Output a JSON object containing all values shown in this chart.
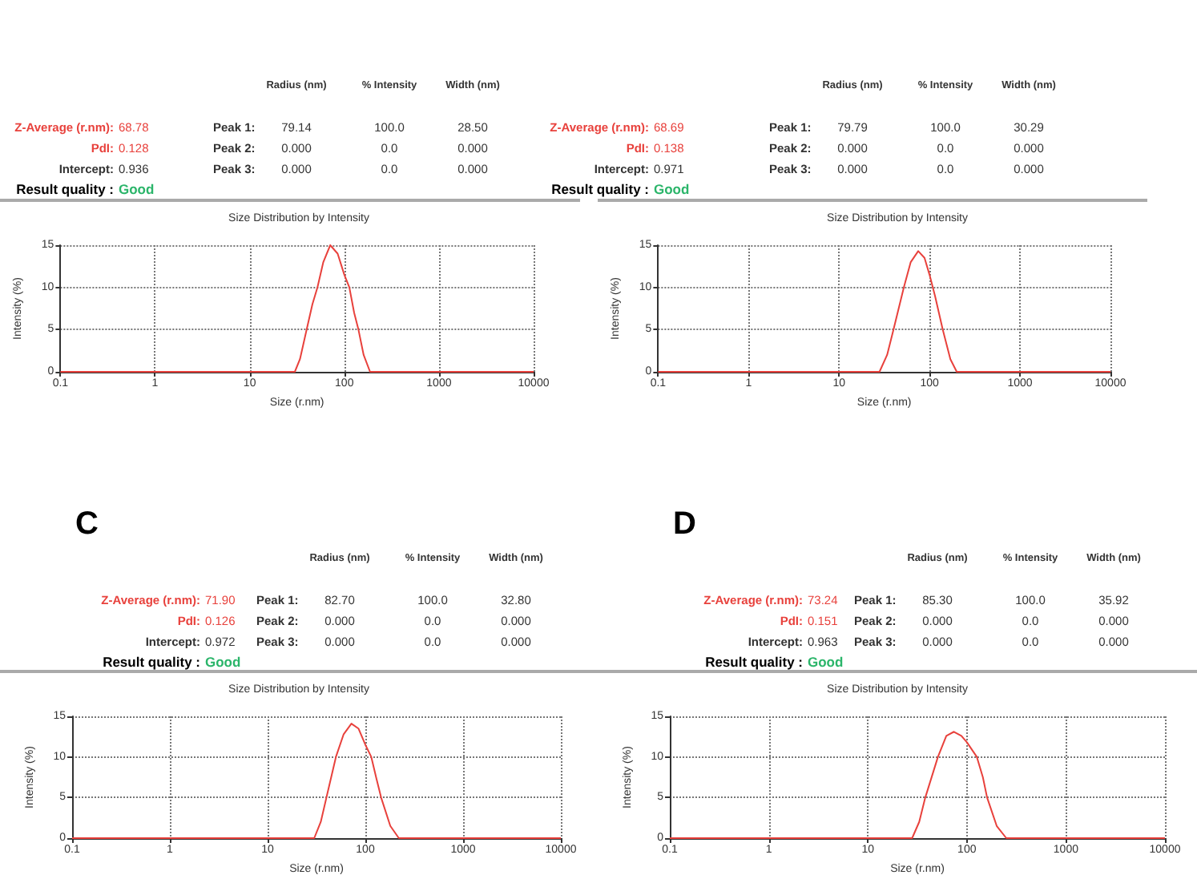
{
  "chart_data": [
    {
      "type": "other",
      "annotations": [
        "Radius (nm)",
        "% Intensity",
        "Width (nm)",
        "Z-Average (r.nm):",
        "68.78",
        "PdI:",
        "0.128",
        "Intercept:",
        "0.936",
        "Result quality :",
        "Good",
        "Peak 1:",
        "79.14",
        "100.0",
        "28.50",
        "Peak 2:",
        "0.000",
        "0.0",
        "0.000",
        "Peak 3:",
        "0.000",
        "0.0",
        "0.000"
      ]
    },
    {
      "type": "other",
      "annotations": [
        "Radius (nm)",
        "% Intensity",
        "Width (nm)",
        "Z-Average (r.nm):",
        "68.69",
        "PdI:",
        "0.138",
        "Intercept:",
        "0.971",
        "Result quality :",
        "Good",
        "Peak 1:",
        "79.79",
        "100.0",
        "30.29",
        "Peak 2:",
        "0.000",
        "0.0",
        "0.000",
        "Peak 3:",
        "0.000",
        "0.0",
        "0.000"
      ]
    },
    {
      "type": "line",
      "title": "Size Distribution by Intensity",
      "xlabel": "Size (r.nm)",
      "ylabel": "Intensity (%)",
      "log": "x",
      "xlim": [
        0.1,
        10000
      ],
      "xticks": [
        0.1,
        1,
        10,
        100,
        1000,
        10000
      ],
      "ylim": [
        0,
        15
      ],
      "yticks": [
        0,
        5,
        10,
        15
      ],
      "grid": true,
      "marker": "none",
      "line_style": "solid",
      "series": [
        {
          "color": "#e8413c",
          "x": [
            0.1,
            30,
            34,
            40,
            46,
            52,
            60,
            71,
            85,
            100,
            113,
            127,
            141,
            160,
            187,
            10000
          ],
          "values": [
            0,
            0,
            1.5,
            5,
            8,
            10,
            13,
            15,
            14,
            11.5,
            10,
            7,
            5,
            2,
            0,
            0
          ]
        }
      ]
    },
    {
      "type": "line",
      "title": "Size Distribution by Intensity",
      "xlabel": "Size (r.nm)",
      "ylabel": "Intensity (%)",
      "log": "x",
      "xlim": [
        0.1,
        10000
      ],
      "xticks": [
        0.1,
        1,
        10,
        100,
        1000,
        10000
      ],
      "ylim": [
        0,
        15
      ],
      "yticks": [
        0,
        5,
        10,
        15
      ],
      "grid": true,
      "marker": "none",
      "line_style": "solid",
      "series": [
        {
          "color": "#e8413c",
          "x": [
            0.1,
            28,
            34,
            40,
            52,
            62,
            75,
            88,
            100,
            115,
            140,
            170,
            200,
            10000
          ],
          "values": [
            0,
            0,
            2,
            5,
            10,
            13,
            14.3,
            13.5,
            11.5,
            9,
            5,
            1.5,
            0,
            0
          ]
        }
      ]
    },
    {
      "type": "other",
      "title": "C",
      "annotations": [
        "Radius (nm)",
        "% Intensity",
        "Width (nm)",
        "Z-Average (r.nm):",
        "71.90",
        "PdI:",
        "0.126",
        "Intercept:",
        "0.972",
        "Result quality :",
        "Good",
        "Peak 1:",
        "82.70",
        "100.0",
        "32.80",
        "Peak 2:",
        "0.000",
        "0.0",
        "0.000",
        "Peak 3:",
        "0.000",
        "0.0",
        "0.000"
      ]
    },
    {
      "type": "other",
      "title": "D",
      "annotations": [
        "Radius (nm)",
        "% Intensity",
        "Width (nm)",
        "Z-Average (r.nm):",
        "73.24",
        "PdI:",
        "0.151",
        "Intercept:",
        "0.963",
        "Result quality :",
        "Good",
        "Peak 1:",
        "85.30",
        "100.0",
        "35.92",
        "Peak 2:",
        "0.000",
        "0.0",
        "0.000",
        "Peak 3:",
        "0.000",
        "0.0",
        "0.000"
      ]
    },
    {
      "type": "line",
      "title": "Size Distribution by Intensity",
      "xlabel": "Size (r.nm)",
      "ylabel": "Intensity (%)",
      "log": "x",
      "xlim": [
        0.1,
        10000
      ],
      "xticks": [
        0.1,
        1,
        10,
        100,
        1000,
        10000
      ],
      "ylim": [
        0,
        15
      ],
      "yticks": [
        0,
        5,
        10,
        15
      ],
      "grid": true,
      "marker": "none",
      "line_style": "solid",
      "series": [
        {
          "color": "#e8413c",
          "x": [
            0.1,
            30,
            35,
            40,
            50,
            60,
            72,
            85,
            100,
            115,
            130,
            145,
            180,
            220,
            10000
          ],
          "values": [
            0,
            0,
            2,
            5,
            10,
            12.8,
            14.1,
            13.5,
            11.5,
            10,
            7.3,
            5,
            1.5,
            0,
            0
          ]
        }
      ]
    },
    {
      "type": "line",
      "title": "Size Distribution by Intensity",
      "xlabel": "Size (r.nm)",
      "ylabel": "Intensity (%)",
      "log": "x",
      "xlim": [
        0.1,
        10000
      ],
      "xticks": [
        0.1,
        1,
        10,
        100,
        1000,
        10000
      ],
      "ylim": [
        0,
        15
      ],
      "yticks": [
        0,
        5,
        10,
        15
      ],
      "grid": true,
      "marker": "none",
      "line_style": "solid",
      "series": [
        {
          "color": "#e8413c",
          "x": [
            0.1,
            28,
            33,
            38,
            51,
            62,
            74,
            88,
            100,
            126,
            145,
            160,
            200,
            250,
            10000
          ],
          "values": [
            0,
            0,
            2,
            5,
            10,
            12.6,
            13.1,
            12.6,
            11.8,
            10,
            7.5,
            5,
            1.5,
            0,
            0
          ]
        }
      ]
    }
  ]
}
